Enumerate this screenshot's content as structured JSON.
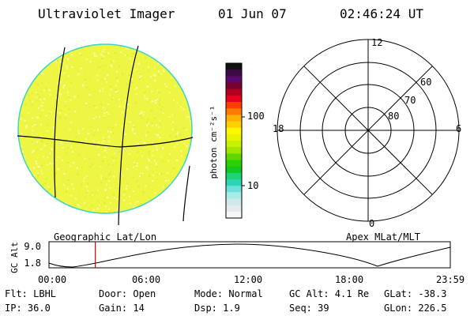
{
  "header": {
    "title": "Ultraviolet Imager",
    "date": "01 Jun 07",
    "time": "02:46:24 UT"
  },
  "image_panel": {
    "caption": "Geographic Lat/Lon",
    "fill_color": "#eef542",
    "rim_color": "#38d6c4"
  },
  "colorbar": {
    "unit_label": "photon cm⁻²s⁻¹",
    "ticks": [
      "100",
      "10"
    ],
    "colors_top_to_bottom": [
      "#121212",
      "#3c0a46",
      "#5a0a6e",
      "#7a0030",
      "#b0001e",
      "#e8001e",
      "#ff3c00",
      "#ff7a00",
      "#ffb000",
      "#ffd000",
      "#fff700",
      "#e8f400",
      "#c8f000",
      "#9ee800",
      "#60d800",
      "#2cd200",
      "#10c81e",
      "#1ed27a",
      "#2cd6b4",
      "#6ee0dc",
      "#a8ece8",
      "#cfe8ea",
      "#e2eaec",
      "#f6f6f6"
    ]
  },
  "polar_plot": {
    "caption": "Apex MLat/MLT",
    "mlt_labels": {
      "top": "12",
      "bottom": "0",
      "left": "18",
      "right": "6"
    },
    "lat_labels": [
      "60",
      "70",
      "80"
    ]
  },
  "timeline": {
    "ylabel": "GC Alt",
    "yticks": [
      "9.0",
      "1.8"
    ],
    "xticks": [
      "00:00",
      "06:00",
      "12:00",
      "18:00",
      "23:59"
    ],
    "marker_time_hours": 2.77,
    "marker_color": "#c00000"
  },
  "footer": {
    "row1": [
      "Flt: LBHL",
      "Door: Open",
      "Mode: Normal",
      "GC Alt: 4.1 Re",
      "GLat: -38.3"
    ],
    "row2": [
      "IP: 36.0",
      "Gain: 14",
      "Dsp:    1.9",
      "Seq: 39",
      "GLon: 226.5"
    ]
  }
}
